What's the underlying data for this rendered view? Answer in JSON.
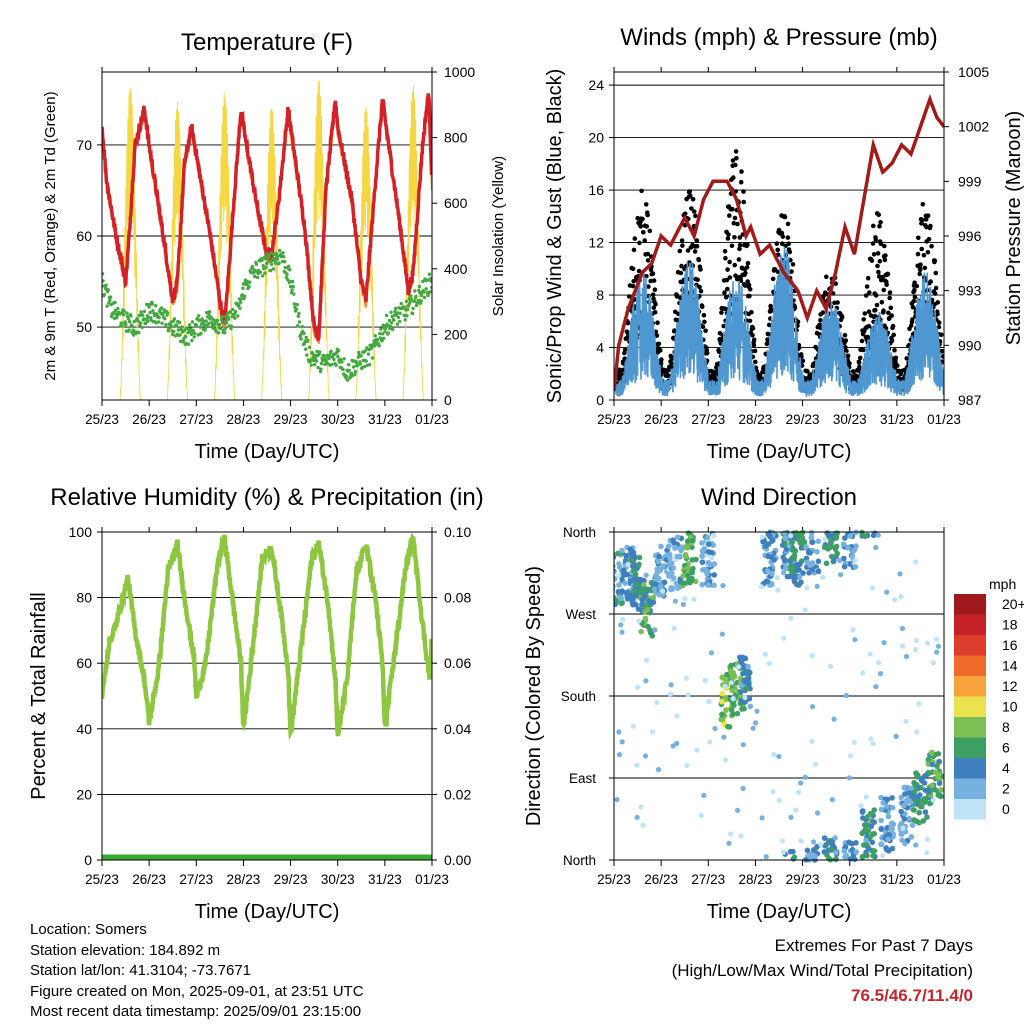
{
  "chart_data": [
    {
      "id": "temperature",
      "type": "line",
      "title": "Temperature (F)",
      "xlabel": "Time (Day/UTC)",
      "ylabel": "2m & 9m T (Red, Orange) & 2m Td (Green)",
      "y2label": "Solar Insolation (Yellow)",
      "x_ticks": [
        "25/23",
        "26/23",
        "27/23",
        "28/23",
        "29/23",
        "30/23",
        "31/23",
        "01/23"
      ],
      "xlim": [
        0,
        7
      ],
      "ylim": [
        42,
        78
      ],
      "y_ticks": [
        50,
        60,
        70
      ],
      "y2lim": [
        0,
        1000
      ],
      "y2_ticks": [
        0,
        200,
        400,
        600,
        800,
        1000
      ],
      "colors": {
        "temp2m": "#d42128",
        "temp9m": "#f28c28",
        "dewpoint": "#43a83f",
        "solar": "#f5d742"
      },
      "series": [
        {
          "name": "2m T",
          "axis": "left",
          "x": [
            0,
            0.1,
            0.3,
            0.5,
            0.55,
            0.7,
            0.9,
            1.0,
            1.3,
            1.5,
            1.6,
            1.75,
            1.9,
            2.0,
            2.3,
            2.5,
            2.6,
            2.8,
            2.95,
            3.0,
            3.3,
            3.5,
            3.6,
            3.75,
            3.95,
            4.0,
            4.3,
            4.5,
            4.6,
            4.75,
            4.95,
            5.0,
            5.3,
            5.5,
            5.6,
            5.8,
            5.95,
            6.0,
            6.3,
            6.5,
            6.6,
            6.8,
            6.93,
            7.0
          ],
          "y": [
            72,
            66,
            60,
            55,
            58,
            70,
            74,
            70,
            60,
            53,
            55,
            68,
            72,
            69,
            60,
            53,
            50,
            64,
            74,
            72,
            63,
            58,
            58,
            64,
            74,
            72,
            61,
            50,
            49,
            65,
            75,
            72,
            64,
            55,
            53,
            66,
            75,
            73,
            62,
            54,
            56,
            70,
            76,
            66
          ]
        },
        {
          "name": "2m Td",
          "axis": "left",
          "x": [
            0,
            0.2,
            0.4,
            0.7,
            0.9,
            1.0,
            1.3,
            1.5,
            1.8,
            2.0,
            2.3,
            2.6,
            2.9,
            3.0,
            3.2,
            3.5,
            3.8,
            4.0,
            4.2,
            4.4,
            4.7,
            5.0,
            5.2,
            5.4,
            5.7,
            6.0,
            6.2,
            6.5,
            6.8,
            7.0
          ],
          "y": [
            55,
            52,
            51,
            50,
            51,
            52,
            51,
            50,
            49,
            50,
            51,
            50,
            52,
            54,
            56,
            57,
            58,
            55,
            50,
            47,
            46,
            47,
            45,
            46,
            47,
            50,
            51,
            52,
            54,
            55
          ]
        },
        {
          "name": "Solar Insolation",
          "axis": "right",
          "peaks_x": [
            0.6,
            1.6,
            2.6,
            3.6,
            4.6,
            5.6,
            6.6
          ],
          "peaks_y": [
            960,
            910,
            940,
            900,
            980,
            900,
            960
          ]
        }
      ]
    },
    {
      "id": "winds",
      "type": "line",
      "title": "Winds (mph) & Pressure (mb)",
      "xlabel": "Time (Day/UTC)",
      "ylabel": "Sonic/Prop Wind & Gust (Blue, Black)",
      "y2label": "Station Pressure (Maroon)",
      "x_ticks": [
        "25/23",
        "26/23",
        "27/23",
        "28/23",
        "29/23",
        "30/23",
        "31/23",
        "01/23"
      ],
      "xlim": [
        0,
        7
      ],
      "ylim": [
        0,
        25
      ],
      "y_ticks": [
        0,
        4,
        8,
        12,
        16,
        20,
        24
      ],
      "y2lim": [
        987,
        1005
      ],
      "y2_ticks": [
        987,
        990,
        993,
        996,
        999,
        1002,
        1005
      ],
      "colors": {
        "wind": "#4f97d1",
        "gust": "#000000",
        "pressure": "#a11b1b"
      },
      "series": [
        {
          "name": "Station Pressure",
          "axis": "right",
          "x": [
            0,
            0.1,
            0.3,
            0.6,
            0.8,
            1.0,
            1.2,
            1.5,
            1.7,
            1.9,
            2.1,
            2.4,
            2.6,
            2.8,
            2.9,
            3.1,
            3.3,
            3.6,
            3.9,
            4.1,
            4.3,
            4.5,
            4.7,
            4.9,
            5.1,
            5.3,
            5.5,
            5.7,
            5.9,
            6.1,
            6.3,
            6.5,
            6.7,
            6.85,
            7.0
          ],
          "y": [
            987.5,
            990,
            992,
            994,
            994.5,
            996,
            995.5,
            997,
            996,
            998,
            999,
            999,
            998,
            996,
            996.5,
            995,
            995.5,
            994,
            993,
            991.5,
            993,
            992,
            994,
            996.5,
            995,
            998,
            1001,
            999.5,
            1000,
            1001,
            1000.5,
            1002,
            1003.5,
            1002.5,
            1002
          ]
        },
        {
          "name": "Sonic/Prop Wind",
          "axis": "left",
          "peaks_x": [
            0.6,
            1.6,
            2.6,
            3.6,
            4.6,
            5.6,
            6.6
          ],
          "peaks_y": [
            8,
            9,
            8,
            10,
            6,
            5,
            8
          ]
        },
        {
          "name": "Gust",
          "axis": "left",
          "peaks_x": [
            0.6,
            1.6,
            2.6,
            3.6,
            4.6,
            5.6,
            6.6
          ],
          "peaks_y": [
            16,
            16,
            20,
            14,
            9,
            14,
            15
          ]
        }
      ]
    },
    {
      "id": "humidity",
      "type": "line",
      "title": "Relative Humidity (%) & Precipitation (in)",
      "xlabel": "Time (Day/UTC)",
      "ylabel": "Percent & Total Rainfall",
      "x_ticks": [
        "25/23",
        "26/23",
        "27/23",
        "28/23",
        "29/23",
        "30/23",
        "31/23",
        "01/23"
      ],
      "xlim": [
        0,
        7
      ],
      "ylim": [
        0,
        100
      ],
      "y_ticks": [
        0,
        20,
        40,
        60,
        80,
        100
      ],
      "y2lim": [
        0,
        0.1
      ],
      "y2_ticks": [
        "0.00",
        "0.02",
        "0.04",
        "0.06",
        "0.08",
        "0.10"
      ],
      "colors": {
        "rh": "#8dc63f",
        "precip": "#39a935"
      },
      "series": [
        {
          "name": "Relative Humidity",
          "axis": "left",
          "x": [
            0,
            0.15,
            0.3,
            0.55,
            0.7,
            0.9,
            1.0,
            1.2,
            1.4,
            1.6,
            1.75,
            1.95,
            2.0,
            2.2,
            2.45,
            2.6,
            2.8,
            2.95,
            3.0,
            3.2,
            3.4,
            3.6,
            3.8,
            3.95,
            4.0,
            4.2,
            4.45,
            4.6,
            4.8,
            4.95,
            5.0,
            5.2,
            5.4,
            5.6,
            5.8,
            5.95,
            6.0,
            6.2,
            6.45,
            6.6,
            6.8,
            6.95,
            7.0
          ],
          "y": [
            50,
            66,
            72,
            86,
            70,
            55,
            42,
            58,
            88,
            96,
            80,
            62,
            50,
            60,
            90,
            98,
            76,
            60,
            40,
            65,
            92,
            95,
            75,
            58,
            38,
            62,
            92,
            96,
            78,
            55,
            38,
            55,
            88,
            96,
            80,
            60,
            40,
            62,
            90,
            98,
            72,
            55,
            68
          ]
        },
        {
          "name": "Total Precipitation",
          "axis": "right",
          "x": [
            0,
            7
          ],
          "y": [
            0,
            0
          ]
        }
      ]
    },
    {
      "id": "wind_direction",
      "type": "scatter",
      "title": "Wind Direction",
      "xlabel": "Time (Day/UTC)",
      "ylabel": "Direction (Colored By Speed)",
      "x_ticks": [
        "25/23",
        "26/23",
        "27/23",
        "28/23",
        "29/23",
        "30/23",
        "31/23",
        "01/23"
      ],
      "xlim": [
        0,
        7
      ],
      "ylim": [
        0,
        360
      ],
      "y_ticks": [
        "North",
        "East",
        "South",
        "West",
        "North"
      ],
      "y_tick_values": [
        0,
        90,
        180,
        270,
        360
      ],
      "colorbar": {
        "title": "mph",
        "labels": [
          "20+",
          "18",
          "16",
          "14",
          "12",
          "10",
          "8",
          "6",
          "4",
          "2",
          "0"
        ],
        "colors": [
          "#9e1a1c",
          "#c62127",
          "#de3d2b",
          "#ef6a2a",
          "#f7a23b",
          "#ece14f",
          "#7cbf55",
          "#3d9f61",
          "#3f7fbe",
          "#76b1df",
          "#bfe3f7"
        ]
      },
      "clusters": [
        {
          "x": 0.05,
          "dir": 310,
          "speed": 4
        },
        {
          "x": 0.3,
          "dir": 315,
          "speed": 3
        },
        {
          "x": 0.5,
          "dir": 305,
          "speed": 5
        },
        {
          "x": 0.7,
          "dir": 275,
          "speed": 6
        },
        {
          "x": 1.0,
          "dir": 320,
          "speed": 3
        },
        {
          "x": 1.3,
          "dir": 325,
          "speed": 2
        },
        {
          "x": 1.6,
          "dir": 330,
          "speed": 7
        },
        {
          "x": 2.0,
          "dir": 330,
          "speed": 2
        },
        {
          "x": 2.4,
          "dir": 175,
          "speed": 8
        },
        {
          "x": 2.6,
          "dir": 190,
          "speed": 7
        },
        {
          "x": 2.8,
          "dir": 195,
          "speed": 4
        },
        {
          "x": 3.3,
          "dir": 330,
          "speed": 3
        },
        {
          "x": 3.7,
          "dir": 340,
          "speed": 4
        },
        {
          "x": 3.9,
          "dir": 330,
          "speed": 5
        },
        {
          "x": 4.2,
          "dir": 345,
          "speed": 3
        },
        {
          "x": 4.6,
          "dir": 355,
          "speed": 5
        },
        {
          "x": 5.0,
          "dir": 350,
          "speed": 3
        },
        {
          "x": 5.4,
          "dir": 25,
          "speed": 5
        },
        {
          "x": 5.8,
          "dir": 40,
          "speed": 3
        },
        {
          "x": 6.2,
          "dir": 50,
          "speed": 3
        },
        {
          "x": 6.5,
          "dir": 70,
          "speed": 5
        },
        {
          "x": 6.8,
          "dir": 90,
          "speed": 6
        }
      ]
    }
  ],
  "info": {
    "location": "Location: Somers",
    "elevation": "Station elevation: 184.892 m",
    "latlon": "Station lat/lon: 41.3104; -73.7671",
    "created": "Figure created on Mon, 2025-09-01, at 23:51 UTC",
    "timestamp": "Most recent data timestamp: 2025/09/01 23:15:00"
  },
  "extremes": {
    "title": "Extremes For Past 7 Days",
    "subtitle": "(High/Low/Max Wind/Total Precipitation)",
    "values": "76.5/46.7/11.4/0"
  }
}
